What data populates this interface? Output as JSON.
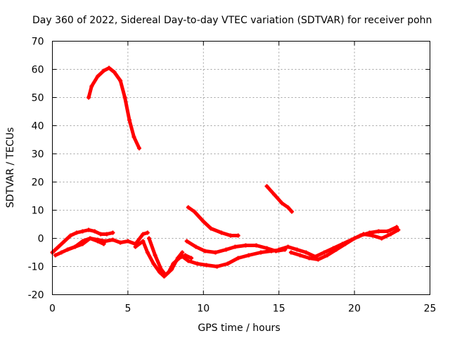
{
  "chart_data": {
    "type": "scatter",
    "title": "Day 360 of 2022, Sidereal Day-to-day VTEC variation (SDTVAR) for receiver pohn",
    "xlabel": "GPS time / hours",
    "ylabel": "SDTVAR / TECUs",
    "xlim": [
      0,
      25
    ],
    "ylim": [
      -20,
      70
    ],
    "xticks": [
      0,
      5,
      10,
      15,
      20,
      25
    ],
    "yticks": [
      -20,
      -10,
      0,
      10,
      20,
      30,
      40,
      50,
      60,
      70
    ],
    "xtick_labels": [
      "0",
      "5",
      "10",
      "15",
      "20",
      "25"
    ],
    "ytick_labels": [
      "-20",
      "-10",
      "0",
      "10",
      "20",
      "30",
      "40",
      "50",
      "60",
      "70"
    ],
    "grid": true,
    "color": "#ff0000",
    "series": [
      {
        "name": "track-high-arc",
        "x": [
          2.4,
          2.6,
          3.0,
          3.4,
          3.75,
          4.1,
          4.5,
          4.8,
          5.1,
          5.4,
          5.75
        ],
        "y": [
          50,
          54,
          57.5,
          59.5,
          60.5,
          59,
          56,
          50,
          42,
          36,
          32
        ]
      },
      {
        "name": "track-mid-rise",
        "x": [
          9.0,
          9.4,
          10.0,
          10.5,
          11.2,
          11.8,
          12.3
        ],
        "y": [
          11,
          9.5,
          6,
          3.5,
          2,
          1,
          1
        ]
      },
      {
        "name": "track-late-arc",
        "x": [
          14.2,
          14.7,
          15.2,
          15.6,
          15.85
        ],
        "y": [
          18.5,
          15.5,
          12.5,
          11,
          9.5
        ]
      },
      {
        "name": "track-early-a",
        "x": [
          0.0,
          0.4,
          0.8,
          1.2,
          1.6,
          2.0,
          2.4,
          2.8,
          3.2,
          3.6,
          4.0
        ],
        "y": [
          -5,
          -3,
          -1,
          1,
          2,
          2.5,
          3,
          2.5,
          1.5,
          1.5,
          2
        ]
      },
      {
        "name": "track-early-b",
        "x": [
          0.2,
          0.6,
          1.0,
          1.5,
          2.0,
          2.5,
          3.0,
          3.4
        ],
        "y": [
          -6,
          -5,
          -4,
          -3,
          -2,
          0,
          -1,
          -2
        ]
      },
      {
        "name": "track-early-c",
        "x": [
          1.0,
          1.5,
          2.0,
          2.5,
          3.0,
          3.5,
          4.0,
          4.5,
          5.0,
          5.5,
          6.0,
          6.3
        ],
        "y": [
          -4,
          -3,
          -1,
          0,
          -0.5,
          -1,
          -0.5,
          -1.5,
          -1,
          -2,
          1.5,
          2
        ]
      },
      {
        "name": "track-dip",
        "x": [
          5.5,
          6.0,
          6.3,
          6.7,
          7.1,
          7.4,
          7.7,
          8.0,
          8.4,
          8.8,
          9.2
        ],
        "y": [
          -3,
          -1,
          -5,
          -9,
          -12,
          -13.5,
          -12,
          -9,
          -7,
          -6,
          -7
        ]
      },
      {
        "name": "track-dip-b",
        "x": [
          6.4,
          6.8,
          7.2,
          7.5,
          7.9,
          8.3,
          8.6
        ],
        "y": [
          0,
          -6,
          -11,
          -13,
          -11,
          -7,
          -5
        ]
      },
      {
        "name": "track-low-band",
        "x": [
          8.9,
          9.5,
          10.1,
          10.8,
          11.5,
          12.1,
          12.8,
          13.5,
          14.2,
          14.8,
          15.4
        ],
        "y": [
          -1,
          -3,
          -4.5,
          -5,
          -4,
          -3,
          -2.5,
          -2.5,
          -3.5,
          -4.5,
          -4
        ]
      },
      {
        "name": "track-lower-band",
        "x": [
          8.5,
          9.0,
          9.6,
          10.2,
          10.9,
          11.6,
          12.3,
          13.0,
          13.8,
          14.5,
          15.2
        ],
        "y": [
          -6,
          -8,
          -9,
          -9.5,
          -10,
          -9,
          -7,
          -6,
          -5,
          -4.5,
          -4
        ]
      },
      {
        "name": "track-evening",
        "x": [
          15.0,
          15.6,
          16.2,
          16.8,
          17.4,
          18.0,
          18.6,
          19.2,
          19.8,
          20.4,
          21.0,
          21.6,
          22.2,
          22.8
        ],
        "y": [
          -4,
          -3,
          -4,
          -5,
          -6.5,
          -5,
          -3.5,
          -2,
          -0.5,
          1,
          2,
          2.5,
          2.5,
          4
        ]
      },
      {
        "name": "track-evening-b",
        "x": [
          15.8,
          16.4,
          17.0,
          17.6,
          18.2,
          18.8,
          19.4,
          20.0,
          20.6,
          21.2,
          21.8,
          22.4,
          22.9
        ],
        "y": [
          -5,
          -6,
          -7,
          -7.5,
          -6,
          -4,
          -2,
          0,
          1.5,
          1,
          0,
          1.5,
          3
        ]
      }
    ]
  }
}
